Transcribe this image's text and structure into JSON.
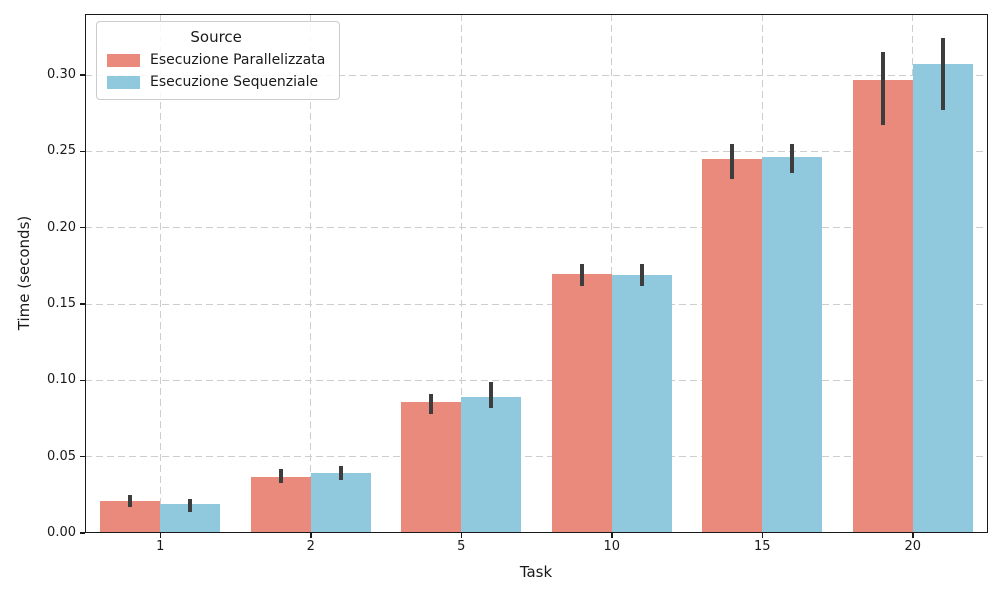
{
  "chart_data": {
    "type": "bar",
    "title": "",
    "xlabel": "Task",
    "ylabel": "Time (seconds)",
    "categories": [
      "1",
      "2",
      "5",
      "10",
      "15",
      "20"
    ],
    "series": [
      {
        "name": "Esecuzione Parallelizzata",
        "color": "#E98A7D",
        "values": [
          0.021,
          0.037,
          0.086,
          0.17,
          0.245,
          0.297
        ],
        "err_low": [
          0.017,
          0.033,
          0.078,
          0.162,
          0.232,
          0.267
        ],
        "err_high": [
          0.025,
          0.042,
          0.091,
          0.176,
          0.255,
          0.315
        ]
      },
      {
        "name": "Esecuzione Sequenziale",
        "color": "#90C9DE",
        "values": [
          0.019,
          0.039,
          0.089,
          0.169,
          0.246,
          0.307
        ],
        "err_low": [
          0.014,
          0.035,
          0.082,
          0.162,
          0.236,
          0.277
        ],
        "err_high": [
          0.022,
          0.044,
          0.099,
          0.176,
          0.255,
          0.324
        ]
      }
    ],
    "ylim": [
      0,
      0.34
    ],
    "yticks": [
      0,
      0.05,
      0.1,
      0.15,
      0.2,
      0.25,
      0.3
    ],
    "ytick_labels": [
      "0.00",
      "0.05",
      "0.10",
      "0.15",
      "0.20",
      "0.25",
      "0.30"
    ],
    "grid": {
      "horizontal": true,
      "vertical": true,
      "style": "dashed",
      "color": "#cdcdcd"
    },
    "error_bar_color": "#3d3d3d",
    "legend": {
      "title": "Source",
      "position": "upper-left"
    }
  }
}
